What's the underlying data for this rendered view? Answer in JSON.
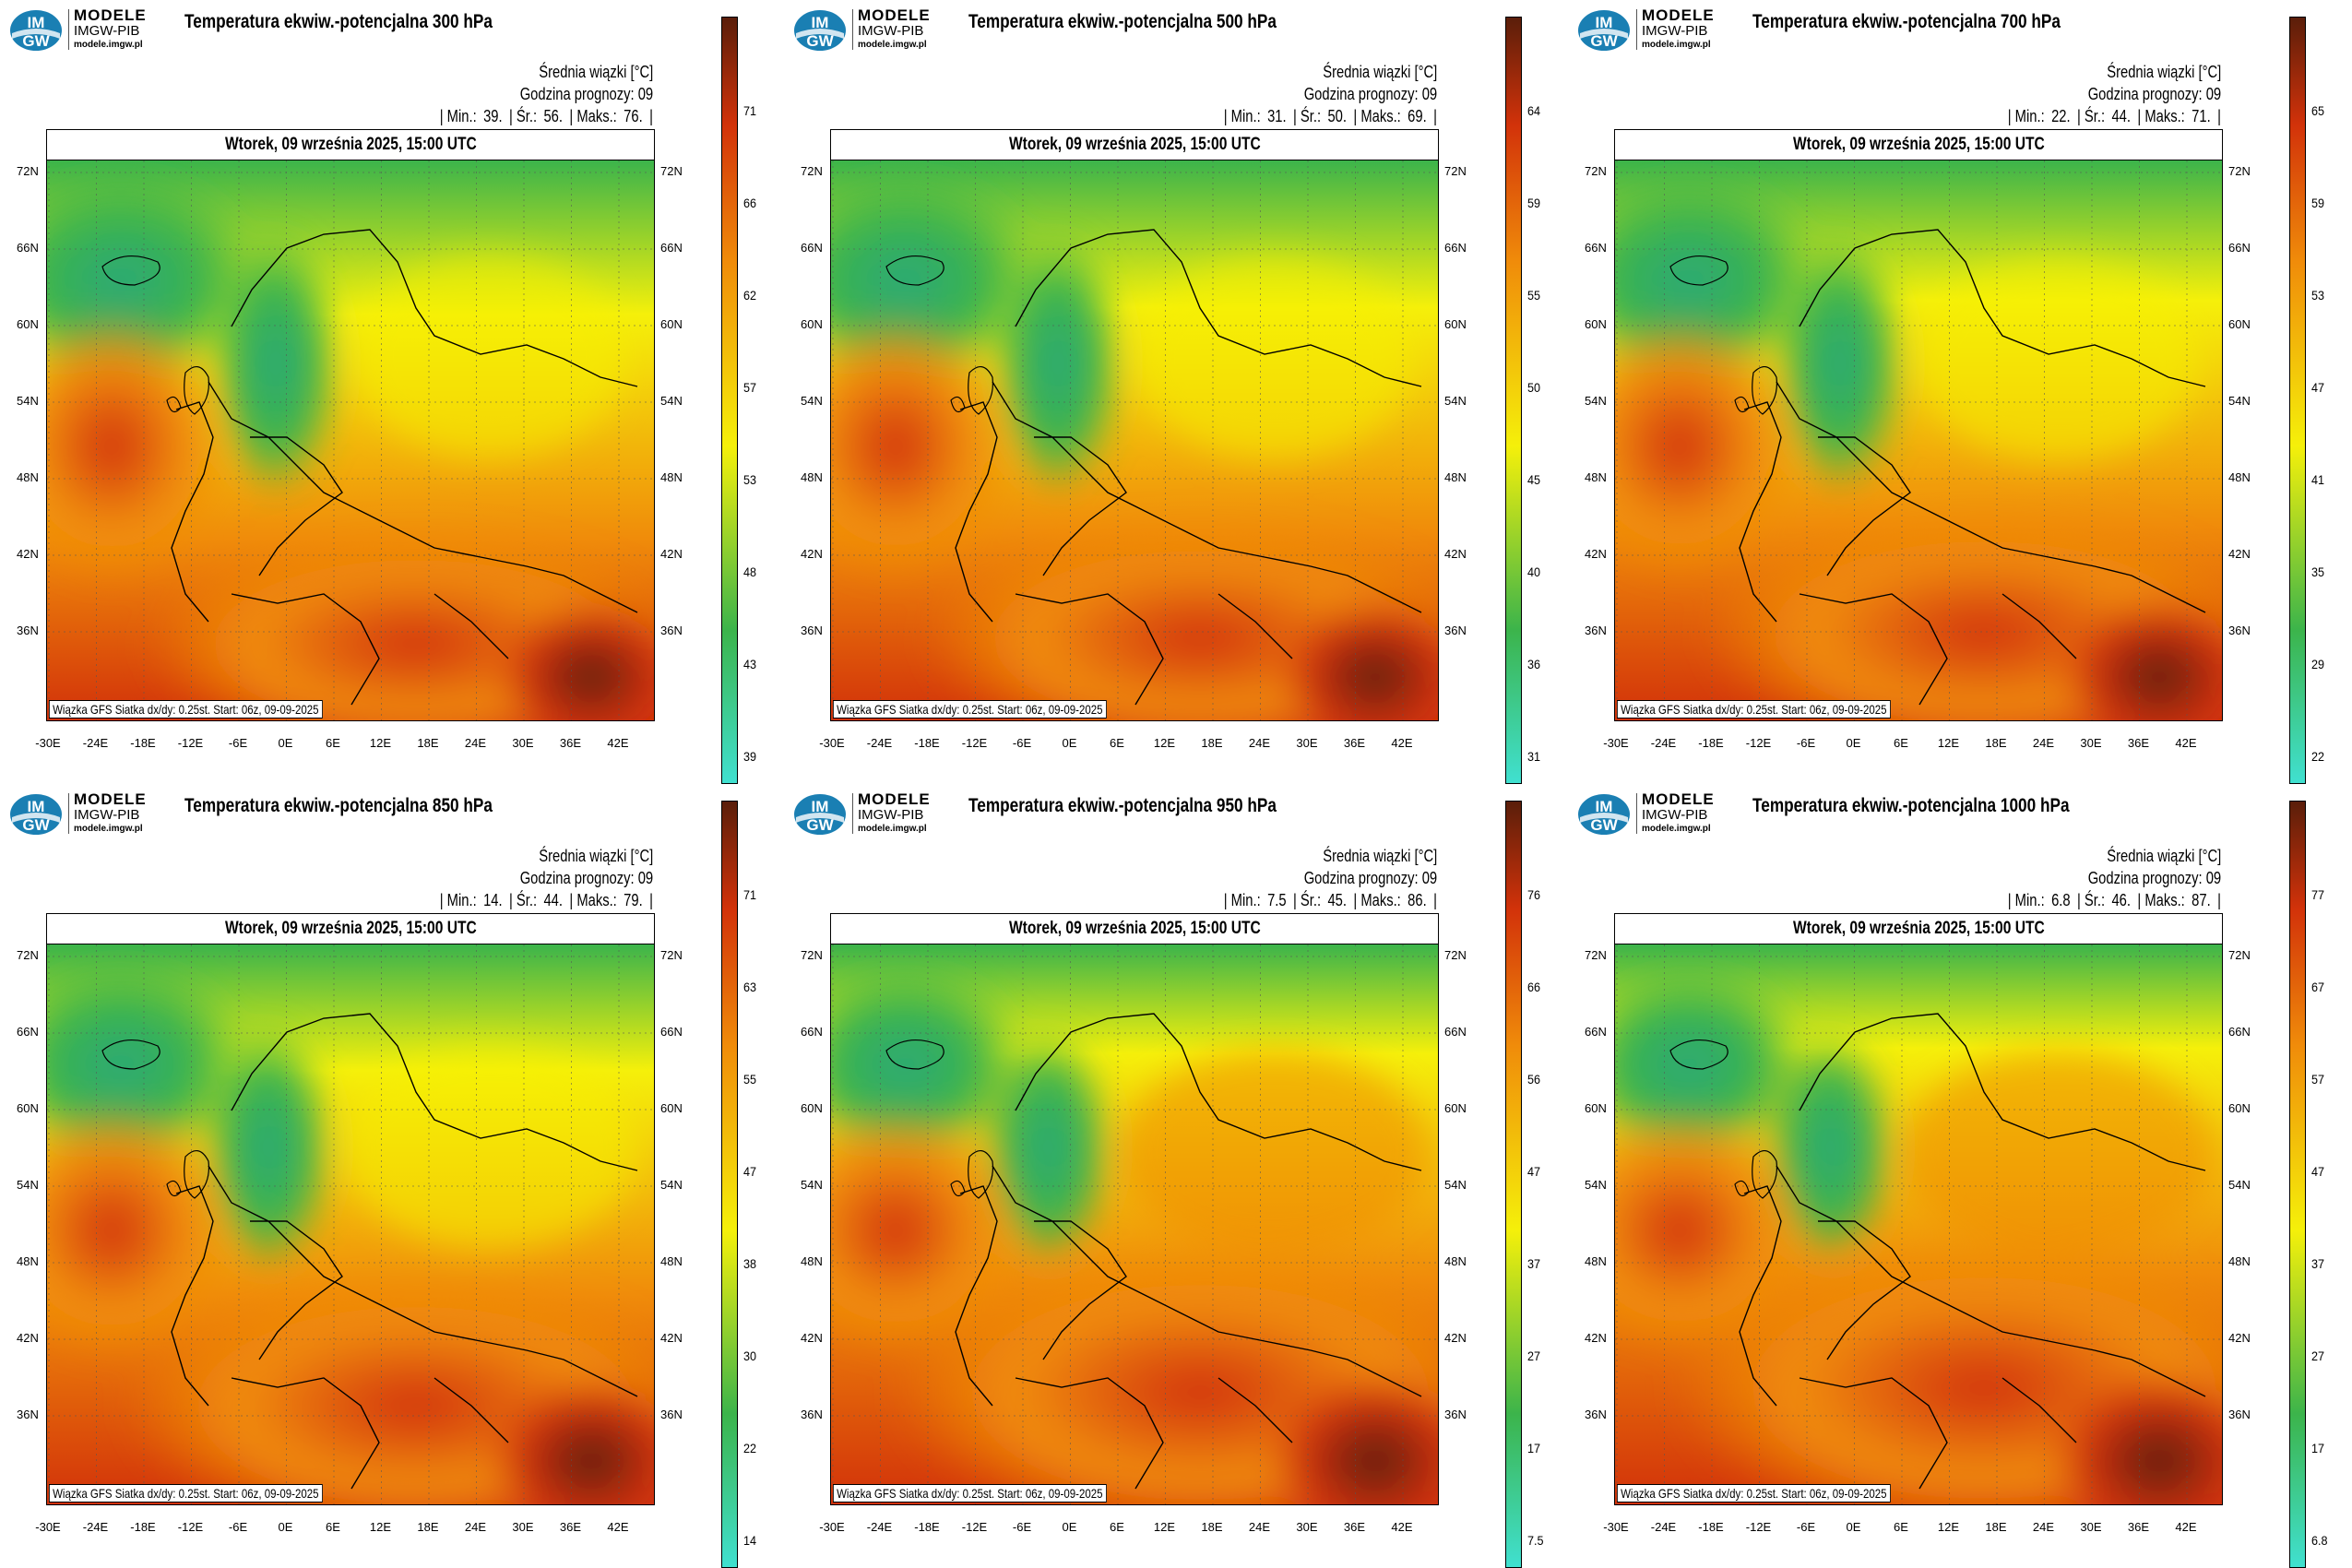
{
  "brand": {
    "name": "MODELE",
    "org": "IMGW-PIB",
    "url": "modele.imgw.pl",
    "logo_text_top": "IM",
    "logo_text_bottom": "GW"
  },
  "labels": {
    "mean": "Średnia wiązki [°C]",
    "hour": "Godzina prognozy: 09",
    "min_label": "| Min.:",
    "avg_label": "| Śr.:",
    "max_label": "| Maks.:",
    "end_bar": "|",
    "date": "Wtorek, 09 września 2025, 15:00 UTC",
    "source": "Wiązka GFS Siatka dx/dy: 0.25st. Start: 06z, 09-09-2025"
  },
  "lat_ticks": [
    "72N",
    "66N",
    "60N",
    "54N",
    "48N",
    "42N",
    "36N"
  ],
  "lon_ticks": [
    "-30E",
    "-24E",
    "-18E",
    "-12E",
    "-6E",
    "0E",
    "6E",
    "12E",
    "18E",
    "24E",
    "30E",
    "36E",
    "42E"
  ],
  "colors": {
    "cold": "#40e0d0",
    "green": "#3cb44b",
    "yellow": "#f5f00a",
    "orange": "#f08c0a",
    "red": "#d2320a",
    "darkred": "#5a1e0a"
  },
  "panels": [
    {
      "title": "Temperatura ekwiw.-potencjalna 300 hPa",
      "min": "39.",
      "avg": "56.",
      "max": "76.",
      "ticks": [
        "71",
        "66",
        "62",
        "57",
        "53",
        "48",
        "43",
        "39"
      ],
      "warmth": 0.3
    },
    {
      "title": "Temperatura ekwiw.-potencjalna 500 hPa",
      "min": "31.",
      "avg": "50.",
      "max": "69.",
      "ticks": [
        "64",
        "59",
        "55",
        "50",
        "45",
        "40",
        "36",
        "31"
      ],
      "warmth": 0.35
    },
    {
      "title": "Temperatura ekwiw.-potencjalna 700 hPa",
      "min": "22.",
      "avg": "44.",
      "max": "71.",
      "ticks": [
        "65",
        "59",
        "53",
        "47",
        "41",
        "35",
        "29",
        "22"
      ],
      "warmth": 0.4
    },
    {
      "title": "Temperatura ekwiw.-potencjalna 850 hPa",
      "min": "14.",
      "avg": "44.",
      "max": "79.",
      "ticks": [
        "71",
        "63",
        "55",
        "47",
        "38",
        "30",
        "22",
        "14"
      ],
      "warmth": 0.5
    },
    {
      "title": "Temperatura ekwiw.-potencjalna 950 hPa",
      "min": "7.5",
      "avg": "45.",
      "max": "86.",
      "ticks": [
        "76",
        "66",
        "56",
        "47",
        "37",
        "27",
        "17",
        "7.5"
      ],
      "warmth": 0.62
    },
    {
      "title": "Temperatura ekwiw.-potencjalna 1000 hPa",
      "min": "6.8",
      "avg": "46.",
      "max": "87.",
      "ticks": [
        "77",
        "67",
        "57",
        "47",
        "37",
        "27",
        "17",
        "6.8"
      ],
      "warmth": 0.66
    }
  ]
}
